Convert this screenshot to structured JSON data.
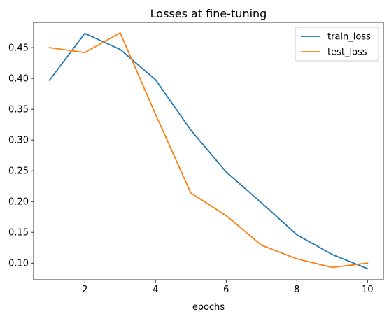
{
  "chart_data": {
    "type": "line",
    "title": "Losses at fine-tuning",
    "xlabel": "epochs",
    "ylabel": "",
    "xlim": [
      0.55,
      10.45
    ],
    "ylim": [
      0.073,
      0.491
    ],
    "x": [
      1,
      2,
      3,
      4,
      5,
      6,
      7,
      8,
      9,
      10
    ],
    "x_ticks": [
      2,
      4,
      6,
      8,
      10
    ],
    "y_ticks": [
      0.1,
      0.15,
      0.2,
      0.25,
      0.3,
      0.35,
      0.4,
      0.45
    ],
    "grid": false,
    "legend_position": "top-right",
    "series": [
      {
        "name": "train_loss",
        "color": "#1f77b4",
        "values": [
          0.397,
          0.473,
          0.447,
          0.398,
          0.316,
          0.248,
          0.198,
          0.146,
          0.114,
          0.091
        ]
      },
      {
        "name": "test_loss",
        "color": "#ff7f0e",
        "values": [
          0.45,
          0.442,
          0.474,
          0.342,
          0.214,
          0.177,
          0.129,
          0.107,
          0.093,
          0.1
        ]
      }
    ]
  }
}
